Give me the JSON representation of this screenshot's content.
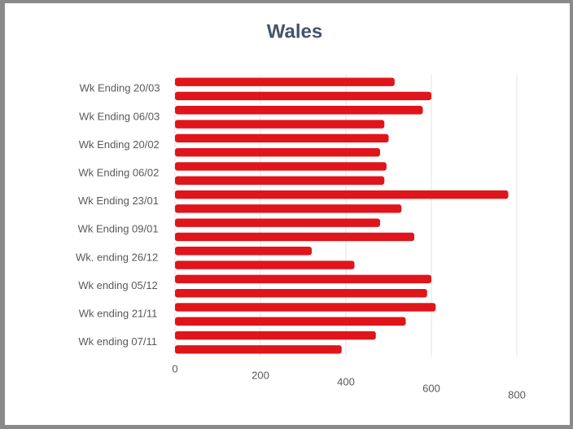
{
  "chart_data": {
    "type": "bar",
    "orientation": "horizontal",
    "title": "Wales",
    "categories": [
      "Wk ending 07/11",
      null,
      "Wk ending 21/11",
      null,
      "Wk ending 05/12",
      null,
      "Wk. ending 26/12",
      null,
      "Wk Ending 09/01",
      null,
      "Wk Ending 23/01",
      null,
      "Wk Ending 06/02",
      null,
      "Wk Ending 20/02",
      null,
      "Wk Ending 06/03",
      null,
      "Wk Ending 20/03",
      null
    ],
    "values": [
      390,
      470,
      540,
      610,
      590,
      600,
      420,
      320,
      560,
      480,
      530,
      780,
      490,
      495,
      480,
      500,
      490,
      580,
      600,
      514
    ],
    "color": "#e0151b",
    "xlim": [
      0,
      800
    ],
    "xticks": [
      0,
      200,
      400,
      600,
      800
    ],
    "grid": true
  }
}
